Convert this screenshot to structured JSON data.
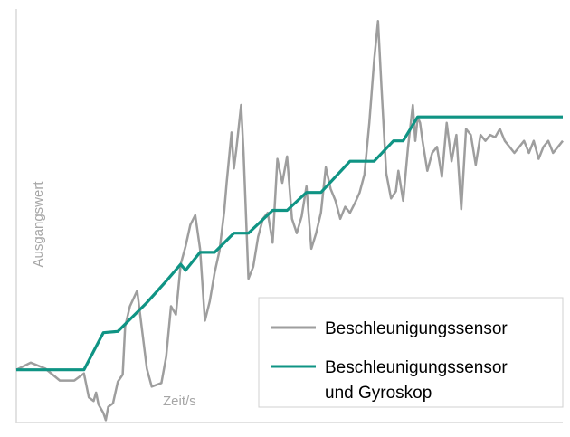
{
  "chart_data": {
    "type": "line",
    "xlabel": "Zeit/s",
    "ylabel": "Ausgangswert",
    "grid": false,
    "legend_position": "bottom-right",
    "series": [
      {
        "name": "Beschleunigungssensor",
        "color": "#9e9e9e",
        "points": [
          [
            0,
            0.14
          ],
          [
            3,
            0.2
          ],
          [
            6,
            0.15
          ],
          [
            9,
            0.05
          ],
          [
            12,
            0.05
          ],
          [
            14,
            0.11
          ],
          [
            15,
            -0.09
          ],
          [
            16,
            -0.12
          ],
          [
            16.5,
            -0.05
          ],
          [
            17,
            -0.15
          ],
          [
            18,
            -0.22
          ],
          [
            18.5,
            -0.28
          ],
          [
            19,
            -0.17
          ],
          [
            20,
            -0.14
          ],
          [
            21,
            0.04
          ],
          [
            22,
            0.1
          ],
          [
            22.5,
            0.5
          ],
          [
            23.5,
            0.67
          ],
          [
            25,
            0.8
          ],
          [
            27,
            0.15
          ],
          [
            28,
            0.0
          ],
          [
            30,
            0.03
          ],
          [
            31,
            0.25
          ],
          [
            32,
            0.67
          ],
          [
            33,
            0.6
          ],
          [
            34,
            1.02
          ],
          [
            35,
            1.17
          ],
          [
            36,
            1.35
          ],
          [
            37,
            1.43
          ],
          [
            38,
            1.15
          ],
          [
            39,
            0.55
          ],
          [
            40,
            0.71
          ],
          [
            41,
            0.95
          ],
          [
            42,
            1.13
          ],
          [
            43,
            1.46
          ],
          [
            43.5,
            1.7
          ],
          [
            44.5,
            2.12
          ],
          [
            45,
            1.82
          ],
          [
            45.5,
            1.98
          ],
          [
            46.5,
            2.35
          ],
          [
            47,
            1.95
          ],
          [
            48,
            0.9
          ],
          [
            49,
            1.0
          ],
          [
            50,
            1.25
          ],
          [
            51,
            1.4
          ],
          [
            52,
            1.45
          ],
          [
            53,
            1.2
          ],
          [
            54,
            1.9
          ],
          [
            55,
            1.7
          ],
          [
            56,
            1.92
          ],
          [
            57,
            1.4
          ],
          [
            58,
            1.28
          ],
          [
            59,
            1.42
          ],
          [
            60,
            1.67
          ],
          [
            61,
            1.15
          ],
          [
            62,
            1.28
          ],
          [
            63,
            1.45
          ],
          [
            64,
            1.83
          ],
          [
            65,
            1.65
          ],
          [
            66,
            1.55
          ],
          [
            67,
            1.4
          ],
          [
            68,
            1.5
          ],
          [
            69,
            1.45
          ],
          [
            70,
            1.53
          ],
          [
            71,
            1.62
          ],
          [
            72,
            1.77
          ],
          [
            73,
            2.2
          ],
          [
            74,
            2.72
          ],
          [
            74.8,
            3.05
          ],
          [
            75.5,
            2.5
          ],
          [
            76.5,
            1.78
          ],
          [
            77.5,
            1.57
          ],
          [
            78.5,
            1.63
          ],
          [
            79,
            1.8
          ],
          [
            80,
            1.55
          ],
          [
            81,
            2.0
          ],
          [
            82,
            2.35
          ],
          [
            82.5,
            2.05
          ],
          [
            83,
            2.25
          ],
          [
            83.5,
            2.2
          ],
          [
            84,
            2.05
          ],
          [
            85,
            1.8
          ],
          [
            86,
            1.95
          ],
          [
            87,
            2.0
          ],
          [
            88,
            1.75
          ],
          [
            89,
            2.2
          ],
          [
            90,
            1.88
          ],
          [
            91,
            2.1
          ],
          [
            92,
            1.48
          ],
          [
            93,
            2.15
          ],
          [
            94,
            2.1
          ],
          [
            95,
            1.85
          ],
          [
            96,
            2.1
          ],
          [
            97,
            2.05
          ],
          [
            98,
            2.1
          ],
          [
            99,
            2.08
          ],
          [
            100,
            2.15
          ],
          [
            101,
            2.05
          ],
          [
            102,
            2.0
          ],
          [
            103,
            1.95
          ],
          [
            104,
            2.0
          ],
          [
            105,
            2.05
          ],
          [
            106,
            1.95
          ],
          [
            107,
            2.05
          ],
          [
            108,
            1.9
          ],
          [
            109,
            2.0
          ],
          [
            110,
            2.05
          ],
          [
            111,
            1.95
          ],
          [
            112,
            2.0
          ],
          [
            113,
            2.05
          ]
        ]
      },
      {
        "name": "Beschleunigungssensor und Gyroskop",
        "color": "#0f9484",
        "points": [
          [
            0,
            0.14
          ],
          [
            12,
            0.14
          ],
          [
            14,
            0.14
          ],
          [
            18,
            0.45
          ],
          [
            21,
            0.46
          ],
          [
            24,
            0.58
          ],
          [
            27,
            0.7
          ],
          [
            31,
            0.88
          ],
          [
            34,
            1.02
          ],
          [
            35,
            0.97
          ],
          [
            38,
            1.12
          ],
          [
            41,
            1.12
          ],
          [
            45,
            1.28
          ],
          [
            48,
            1.28
          ],
          [
            53,
            1.47
          ],
          [
            56,
            1.47
          ],
          [
            60,
            1.62
          ],
          [
            63,
            1.62
          ],
          [
            69,
            1.88
          ],
          [
            74,
            1.88
          ],
          [
            78,
            2.05
          ],
          [
            80,
            2.05
          ],
          [
            83,
            2.25
          ],
          [
            103,
            2.25
          ],
          [
            113,
            2.25
          ]
        ]
      }
    ],
    "xlim": [
      0,
      113
    ],
    "ylim": [
      -0.3,
      3.15
    ]
  },
  "legend": {
    "items": [
      {
        "lines": [
          "Beschleunigungssensor"
        ]
      },
      {
        "lines": [
          "Beschleunigungssensor",
          "und Gyroskop"
        ]
      }
    ]
  }
}
